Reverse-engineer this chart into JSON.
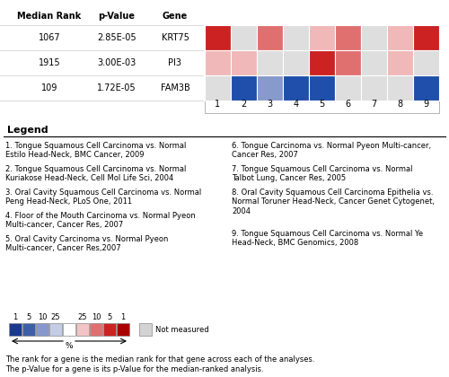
{
  "genes": [
    "KRT75",
    "PI3",
    "FAM3B"
  ],
  "median_ranks": [
    "1067",
    "1915",
    "109"
  ],
  "p_values": [
    "2.85E-05",
    "3.00E-03",
    "1.72E-05"
  ],
  "heatmap": {
    "KRT75": [
      "red_dark",
      "gray",
      "red_medium",
      "gray",
      "red_light",
      "red_medium",
      "gray",
      "red_light",
      "red_dark"
    ],
    "PI3": [
      "red_light",
      "red_light",
      "gray",
      "gray",
      "red_dark",
      "red_medium",
      "gray",
      "red_light",
      "gray"
    ],
    "FAM3B": [
      "gray",
      "blue_dark",
      "blue_medium",
      "blue_dark",
      "blue_dark",
      "gray",
      "gray",
      "gray",
      "blue_dark"
    ]
  },
  "color_map": {
    "red_dark": "#cc2222",
    "red_medium": "#e07070",
    "red_light": "#f0b8b8",
    "blue_dark": "#1f4faa",
    "blue_medium": "#8899cc",
    "gray": "#dedede",
    "white": "#ffffff"
  },
  "legend_colors": [
    "#1a3a8f",
    "#3d5fa8",
    "#8898cc",
    "#c5cce6",
    "#ffffff",
    "#f2c4c4",
    "#e07070",
    "#cc2222",
    "#aa0000"
  ],
  "legend_labels": [
    "1",
    "5",
    "10",
    "25",
    "",
    "25",
    "10",
    "5",
    "1"
  ],
  "not_measured_color": "#d3d3d3",
  "col_labels": [
    "1",
    "2",
    "3",
    "4",
    "5",
    "6",
    "7",
    "8",
    "9"
  ],
  "legend_text_left": [
    "1. Tongue Squamous Cell Carcinoma vs. Normal\nEstilo Head-Neck, BMC Cancer, 2009",
    "2. Tongue Squamous Cell Carcinoma vs. Normal\nKuriakose Head-Neck, Cell Mol Life Sci, 2004",
    "3. Oral Cavity Squamous Cell Carcinoma vs. Normal\nPeng Head-Neck, PLoS One, 2011",
    "4. Floor of the Mouth Carcinoma vs. Normal Pyeon\nMulti-cancer, Cancer Res, 2007",
    "5. Oral Cavity Carcinoma vs. Normal Pyeon\nMulti-cancer, Cancer Res,2007"
  ],
  "legend_text_right": [
    "6. Tongue Carcinoma vs. Normal Pyeon Multi-cancer,\nCancer Res, 2007",
    "7. Tongue Squamous Cell Carcinoma vs. Normal\nTalbot Lung, Cancer Res, 2005",
    "8. Oral Cavity Squamous Cell Carcinoma Epithelia vs.\nNormal Toruner Head-Neck, Cancer Genet Cytogenet,\n2004",
    "9. Tongue Squamous Cell Carcinoma vs. Normal Ye\nHead-Neck, BMC Genomics, 2008"
  ],
  "footer_lines": [
    "The rank for a gene is the median rank for that gene across each of the analyses.",
    "The p-Value for a gene is its p-Value for the median-ranked analysis."
  ],
  "fig_width": 5.0,
  "fig_height": 4.2,
  "dpi": 100
}
